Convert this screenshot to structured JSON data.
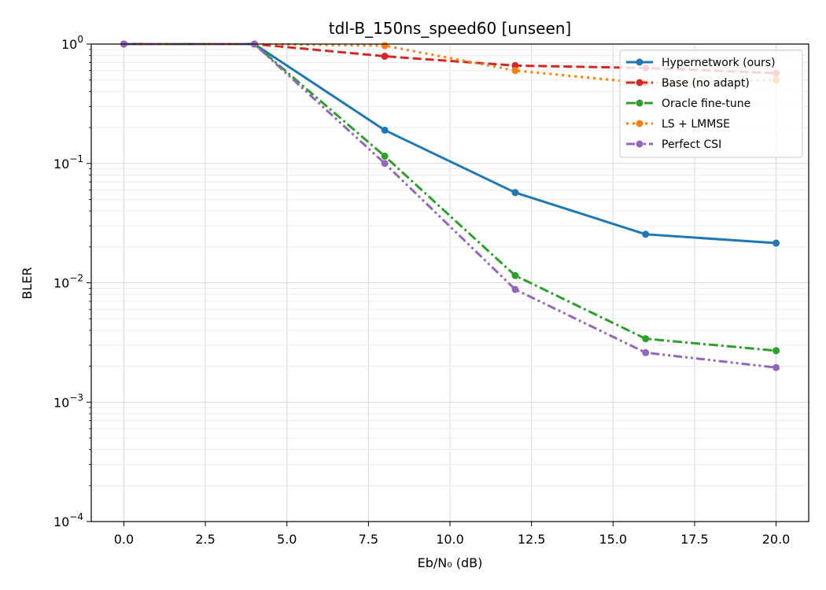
{
  "chart_data": {
    "type": "line",
    "title": "tdl-B_150ns_speed60  [unseen]",
    "xlabel": "Eb/N₀ (dB)",
    "ylabel": "BLER",
    "xlim": [
      -1,
      21
    ],
    "ylim": [
      0.0001,
      1
    ],
    "yscale": "log",
    "x_ticks": [
      0.0,
      2.5,
      5.0,
      7.5,
      10.0,
      12.5,
      15.0,
      17.5,
      20.0
    ],
    "x_tick_labels": [
      "0.0",
      "2.5",
      "5.0",
      "7.5",
      "10.0",
      "12.5",
      "15.0",
      "17.5",
      "20.0"
    ],
    "y_ticks": [
      {
        "value": 1,
        "base": "10",
        "exp": "0"
      },
      {
        "value": 0.1,
        "base": "10",
        "exp": "−1"
      },
      {
        "value": 0.01,
        "base": "10",
        "exp": "−2"
      },
      {
        "value": 0.001,
        "base": "10",
        "exp": "−3"
      },
      {
        "value": 0.0001,
        "base": "10",
        "exp": "−4"
      }
    ],
    "grid": true,
    "legend_position": "top-right",
    "x": [
      0,
      4,
      8,
      12,
      16,
      20
    ],
    "series": [
      {
        "name": "Hypernetwork (ours)",
        "color": "#1f77b4",
        "dash": "solid",
        "values": [
          1.0,
          1.0,
          0.19,
          0.057,
          0.0255,
          0.0215
        ]
      },
      {
        "name": "Base (no adapt)",
        "color": "#d62728",
        "dash": "dashed",
        "values": [
          1.0,
          1.0,
          0.79,
          0.66,
          0.63,
          0.57
        ]
      },
      {
        "name": "Oracle fine-tune",
        "color": "#2ca02c",
        "dash": "dashdot",
        "values": [
          1.0,
          1.0,
          0.115,
          0.0115,
          0.0034,
          0.0027
        ]
      },
      {
        "name": "LS + LMMSE",
        "color": "#ff7f0e",
        "dash": "dotted",
        "values": [
          1.0,
          1.0,
          0.97,
          0.6,
          0.47,
          0.5
        ]
      },
      {
        "name": "Perfect CSI",
        "color": "#9467bd",
        "dash": "dashdotdot",
        "values": [
          1.0,
          1.0,
          0.1,
          0.0088,
          0.0026,
          0.00195
        ]
      }
    ]
  }
}
